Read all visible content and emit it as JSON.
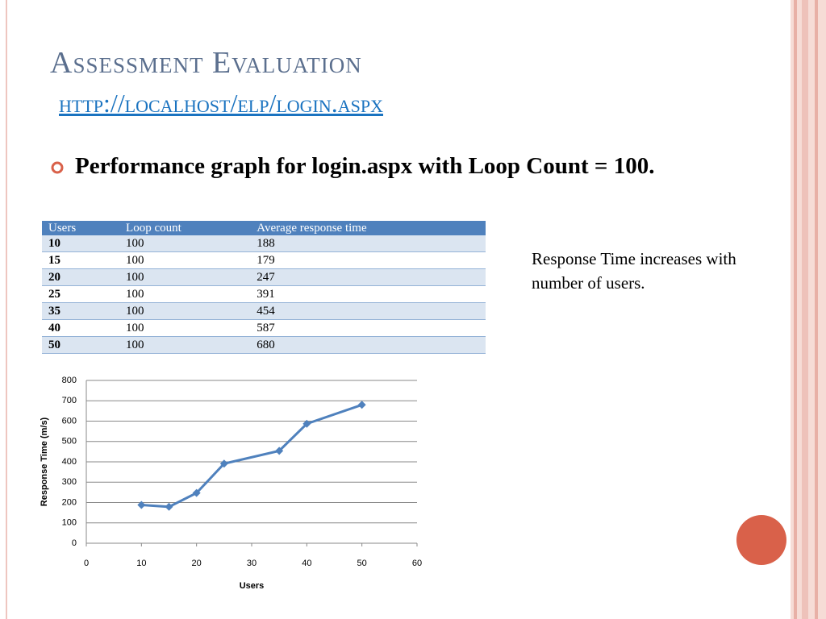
{
  "title": "Assessment Evaluation",
  "link": "http://localhost/elp/login.aspx",
  "bullet": "Performance graph for login.aspx with Loop Count = 100.",
  "table": {
    "header": [
      "Users",
      "Loop count",
      "Average response time"
    ],
    "rows": [
      [
        10,
        100,
        188
      ],
      [
        15,
        100,
        179
      ],
      [
        20,
        100,
        247
      ],
      [
        25,
        100,
        391
      ],
      [
        35,
        100,
        454
      ],
      [
        40,
        100,
        587
      ],
      [
        50,
        100,
        680
      ]
    ]
  },
  "note": "Response Time increases with number of users.",
  "chart_data": {
    "type": "line",
    "x_label": "Users",
    "y_label": "Response Time (m/s)",
    "x": [
      10,
      15,
      20,
      25,
      35,
      40,
      50
    ],
    "series": [
      {
        "color": "#4f81bd",
        "values": [
          188,
          179,
          247,
          391,
          454,
          587,
          680
        ]
      }
    ],
    "xlim": [
      0,
      60
    ],
    "xticks": [
      0,
      10,
      20,
      30,
      40,
      50,
      60
    ],
    "ylim": [
      0,
      800
    ],
    "yticks": [
      0,
      100,
      200,
      300,
      400,
      500,
      600,
      700,
      800
    ],
    "grid": true
  }
}
